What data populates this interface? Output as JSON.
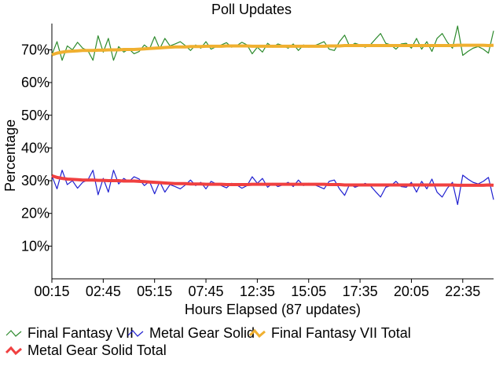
{
  "chart_data": {
    "type": "line",
    "title": "Poll Updates",
    "xlabel": "Hours Elapsed (87 updates)",
    "ylabel": "Percentage",
    "ylim": [
      0,
      78
    ],
    "y_ticks": [
      "10%",
      "20%",
      "30%",
      "40%",
      "50%",
      "60%",
      "70%"
    ],
    "y_tick_values": [
      10,
      20,
      30,
      40,
      50,
      60,
      70
    ],
    "x_tick_labels": [
      "00:15",
      "02:45",
      "05:15",
      "07:45",
      "12:35",
      "15:05",
      "17:35",
      "20:05",
      "22:35"
    ],
    "grid": false,
    "legend_position": "bottom",
    "series": [
      {
        "name": "Final Fantasy VII",
        "color": "#2e8b2e",
        "values": [
          68.5,
          72.5,
          66.8,
          71.2,
          70.0,
          72.3,
          70.5,
          69.8,
          66.8,
          74.3,
          69.3,
          73.5,
          66.8,
          71.0,
          69.3,
          70.3,
          68.8,
          69.5,
          71.5,
          70.2,
          74.0,
          70.3,
          73.5,
          71.2,
          71.8,
          72.5,
          71.3,
          69.8,
          71.5,
          70.5,
          72.5,
          70.2,
          71.0,
          71.5,
          72.2,
          70.8,
          71.3,
          72.3,
          71.5,
          68.8,
          70.8,
          69.3,
          72.0,
          70.8,
          71.8,
          71.3,
          70.5,
          71.8,
          69.8,
          71.5,
          70.8,
          71.2,
          71.8,
          72.5,
          70.2,
          69.8,
          72.5,
          74.5,
          71.0,
          72.0,
          71.5,
          70.8,
          71.5,
          73.3,
          75.0,
          72.0,
          71.5,
          70.2,
          71.8,
          72.0,
          70.5,
          73.5,
          70.2,
          72.5,
          69.5,
          73.5,
          75.0,
          72.3,
          70.5,
          77.3,
          68.3,
          69.5,
          70.5,
          71.0,
          70.2,
          69.0,
          75.8
        ]
      },
      {
        "name": "Metal Gear Solid",
        "color": "#2020d0",
        "values": [
          31.5,
          27.5,
          33.2,
          28.8,
          30.0,
          27.7,
          29.5,
          30.2,
          33.2,
          25.7,
          30.7,
          26.5,
          33.2,
          29.0,
          30.7,
          29.7,
          31.2,
          30.5,
          28.5,
          29.8,
          26.0,
          29.7,
          26.5,
          28.8,
          28.2,
          27.5,
          28.7,
          30.2,
          28.5,
          29.5,
          27.5,
          29.8,
          29.0,
          28.5,
          27.8,
          29.2,
          28.7,
          27.7,
          28.5,
          31.2,
          29.2,
          30.7,
          28.0,
          29.2,
          28.2,
          28.7,
          29.5,
          28.2,
          30.2,
          28.5,
          29.2,
          28.8,
          28.2,
          27.5,
          29.8,
          30.2,
          27.5,
          25.5,
          29.0,
          28.0,
          28.5,
          29.2,
          28.5,
          26.7,
          25.0,
          28.0,
          28.5,
          29.8,
          28.2,
          28.0,
          29.5,
          26.5,
          29.8,
          27.5,
          30.5,
          26.5,
          25.0,
          27.7,
          29.5,
          22.7,
          31.7,
          30.5,
          29.5,
          29.0,
          29.8,
          31.0,
          24.2
        ]
      },
      {
        "name": "Final Fantasy VII Total",
        "color": "#f0b030",
        "values": [
          68.5,
          69.0,
          69.3,
          69.5,
          69.6,
          69.7,
          69.8,
          69.8,
          69.8,
          69.9,
          69.9,
          70.0,
          70.0,
          70.0,
          70.1,
          70.1,
          70.1,
          70.2,
          70.3,
          70.4,
          70.5,
          70.6,
          70.7,
          70.8,
          70.9,
          70.9,
          70.9,
          71.0,
          71.0,
          71.0,
          71.1,
          71.1,
          71.1,
          71.1,
          71.2,
          71.2,
          71.2,
          71.2,
          71.2,
          71.1,
          71.1,
          71.1,
          71.1,
          71.1,
          71.1,
          71.1,
          71.1,
          71.1,
          71.1,
          71.1,
          71.1,
          71.1,
          71.1,
          71.1,
          71.2,
          71.2,
          71.2,
          71.3,
          71.3,
          71.3,
          71.3,
          71.3,
          71.3,
          71.3,
          71.3,
          71.3,
          71.3,
          71.3,
          71.3,
          71.3,
          71.3,
          71.3,
          71.3,
          71.3,
          71.3,
          71.3,
          71.3,
          71.3,
          71.3,
          71.4,
          71.4,
          71.4,
          71.4,
          71.4,
          71.4,
          71.3,
          71.4
        ]
      },
      {
        "name": "Metal Gear Solid Total",
        "color": "#f04040",
        "values": [
          31.5,
          31.0,
          30.7,
          30.5,
          30.4,
          30.3,
          30.2,
          30.2,
          30.2,
          30.1,
          30.1,
          30.0,
          30.0,
          30.0,
          29.9,
          29.9,
          29.9,
          29.8,
          29.7,
          29.6,
          29.5,
          29.4,
          29.3,
          29.2,
          29.1,
          29.1,
          29.1,
          29.0,
          29.0,
          29.0,
          28.9,
          28.9,
          28.9,
          28.9,
          28.8,
          28.8,
          28.8,
          28.8,
          28.8,
          28.9,
          28.9,
          28.9,
          28.9,
          28.9,
          28.9,
          28.9,
          28.9,
          28.9,
          28.9,
          28.9,
          28.9,
          28.9,
          28.9,
          28.9,
          28.8,
          28.8,
          28.8,
          28.7,
          28.7,
          28.7,
          28.7,
          28.7,
          28.7,
          28.7,
          28.7,
          28.7,
          28.7,
          28.7,
          28.7,
          28.7,
          28.7,
          28.7,
          28.7,
          28.7,
          28.7,
          28.7,
          28.7,
          28.7,
          28.7,
          28.6,
          28.6,
          28.6,
          28.6,
          28.6,
          28.6,
          28.7,
          28.6
        ]
      }
    ]
  }
}
